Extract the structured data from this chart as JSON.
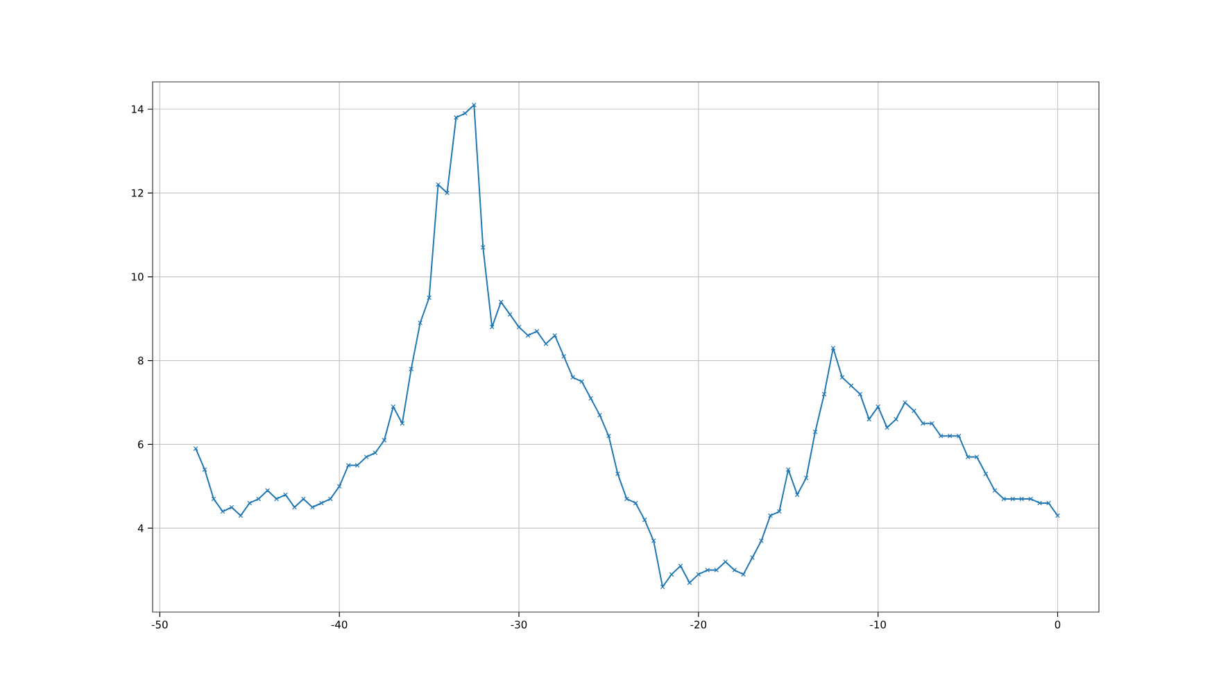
{
  "chart_data": {
    "type": "line",
    "marker": "cross",
    "line_style": "solid",
    "grid": true,
    "xlim": [
      -50.4,
      2.3
    ],
    "ylim": [
      2.0,
      14.65
    ],
    "xticks": [
      -50,
      -40,
      -30,
      -20,
      -10,
      0
    ],
    "yticks": [
      4,
      6,
      8,
      10,
      12,
      14
    ],
    "x": [
      -48,
      -47.5,
      -47,
      -46.5,
      -46,
      -45.5,
      -45,
      -44.5,
      -44,
      -43.5,
      -43,
      -42.5,
      -42,
      -41.5,
      -41,
      -40.5,
      -40,
      -39.5,
      -39,
      -38.5,
      -38,
      -37.5,
      -37,
      -36.5,
      -36,
      -35.5,
      -35,
      -34.5,
      -34,
      -33.5,
      -33,
      -32.5,
      -32,
      -31.5,
      -31,
      -30.5,
      -30,
      -29.5,
      -29,
      -28.5,
      -28,
      -27.5,
      -27,
      -26.5,
      -26,
      -25.5,
      -25,
      -24.5,
      -24,
      -23.5,
      -23,
      -22.5,
      -22,
      -21.5,
      -21,
      -20.5,
      -20,
      -19.5,
      -19,
      -18.5,
      -18,
      -17.5,
      -17,
      -16.5,
      -16,
      -15.5,
      -15,
      -14.5,
      -14,
      -13.5,
      -13,
      -12.5,
      -12,
      -11.5,
      -11,
      -10.5,
      -10,
      -9.5,
      -9,
      -8.5,
      -8,
      -7.5,
      -7,
      -6.5,
      -6,
      -5.5,
      -5,
      -4.5,
      -4,
      -3.5,
      -3,
      -2.5,
      -2,
      -1.5,
      -1,
      -0.5,
      0
    ],
    "series": [
      {
        "color": "#1f77b4",
        "values": [
          5.9,
          5.4,
          4.7,
          4.4,
          4.5,
          4.3,
          4.6,
          4.7,
          4.9,
          4.7,
          4.8,
          4.5,
          4.7,
          4.5,
          4.6,
          4.7,
          5.0,
          5.5,
          5.5,
          5.7,
          5.8,
          6.1,
          6.9,
          6.5,
          7.8,
          8.9,
          9.5,
          12.2,
          12.0,
          13.8,
          13.9,
          14.1,
          10.7,
          8.8,
          9.4,
          9.1,
          8.8,
          8.6,
          8.7,
          8.4,
          8.6,
          8.1,
          7.6,
          7.5,
          7.1,
          6.7,
          6.2,
          5.3,
          4.7,
          4.6,
          4.2,
          3.7,
          2.6,
          2.9,
          3.1,
          2.7,
          2.9,
          3.0,
          3.0,
          3.2,
          3.0,
          2.9,
          3.3,
          3.7,
          4.3,
          4.4,
          5.4,
          4.8,
          5.2,
          6.3,
          7.2,
          8.3,
          7.6,
          7.4,
          7.2,
          6.6,
          6.9,
          6.4,
          6.6,
          7.0,
          6.8,
          6.5,
          6.5,
          6.2,
          6.2,
          6.2,
          5.7,
          5.7,
          5.3,
          4.9,
          4.7,
          4.7,
          4.7,
          4.7,
          4.6,
          4.6,
          4.3
        ]
      }
    ]
  }
}
